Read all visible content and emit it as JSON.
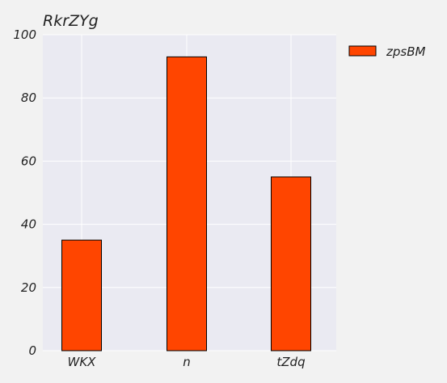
{
  "chart_data": {
    "type": "bar",
    "title": "RkrZYg",
    "xlabel": "",
    "ylabel": "",
    "categories": [
      "WKX",
      "n",
      "tZdq"
    ],
    "series": [
      {
        "name": "zpsBM",
        "values": [
          35,
          93,
          55
        ],
        "color": "#ff4500"
      }
    ],
    "ylim": [
      0,
      100
    ],
    "yticks": [
      "0",
      "20",
      "40",
      "60",
      "80",
      "100"
    ],
    "grid": true,
    "legend": "top-right-outside",
    "colors": {
      "plot_bg": "#eaeaf2",
      "grid": "#ffffff",
      "bar_edge": "#000000"
    }
  }
}
